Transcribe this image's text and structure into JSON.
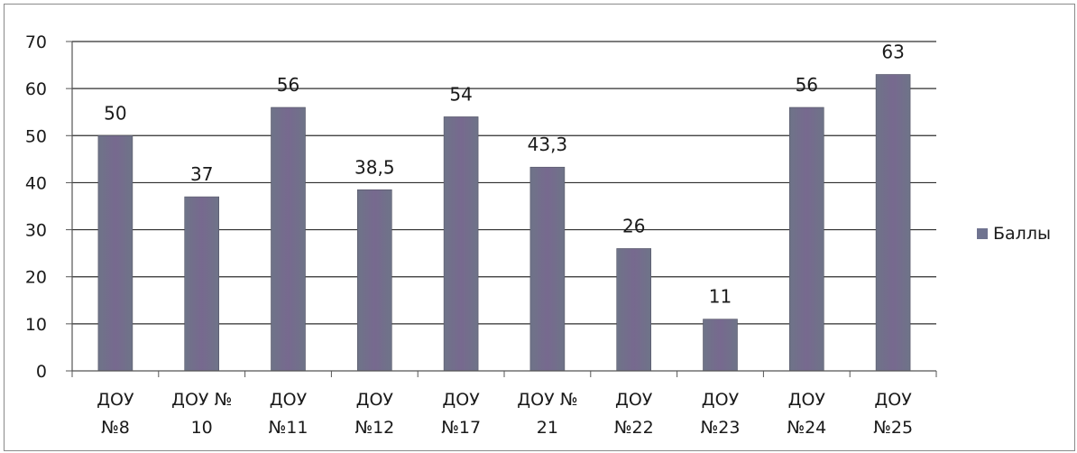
{
  "chart_data": {
    "type": "bar",
    "categories": [
      [
        "ДОУ",
        "№8"
      ],
      [
        "ДОУ №",
        "10"
      ],
      [
        "ДОУ",
        "№11"
      ],
      [
        "ДОУ",
        "№12"
      ],
      [
        "ДОУ",
        "№17"
      ],
      [
        "ДОУ №",
        "21"
      ],
      [
        "ДОУ",
        "№22"
      ],
      [
        "ДОУ",
        "№23"
      ],
      [
        "ДОУ",
        "№24"
      ],
      [
        "ДОУ",
        "№25"
      ]
    ],
    "series": [
      {
        "name": "Баллы",
        "values": [
          50,
          37,
          56,
          38.5,
          54,
          43.3,
          26,
          11,
          56,
          63
        ],
        "labels": [
          "50",
          "37",
          "56",
          "38,5",
          "54",
          "43,3",
          "26",
          "11",
          "56",
          "63"
        ]
      }
    ],
    "ylim": [
      0,
      70
    ],
    "yticks": [
      0,
      10,
      20,
      30,
      40,
      50,
      60,
      70
    ],
    "grid": true,
    "legend_position": "right",
    "colors": {
      "bar_a": "#6e7488",
      "bar_b": "#77698f",
      "gridline": "#2e2e2e",
      "axis": "#555555"
    }
  }
}
